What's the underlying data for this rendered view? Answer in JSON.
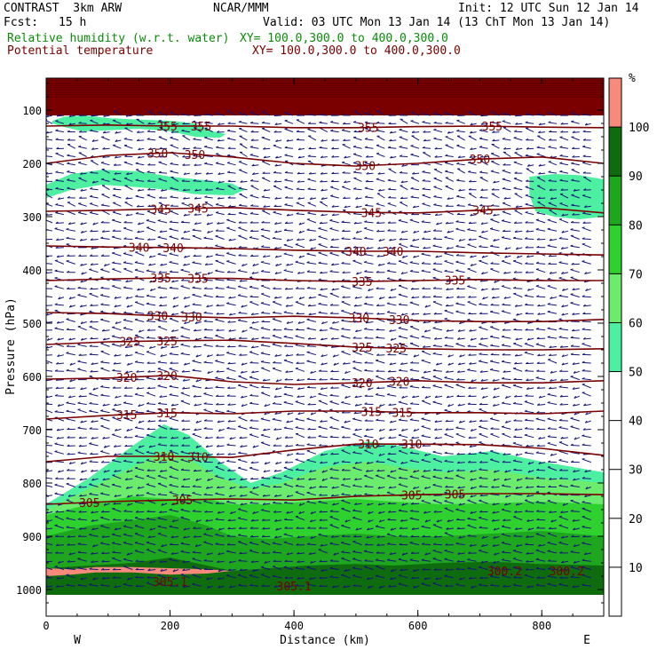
{
  "header": {
    "model": "CONTRAST  3km ARW",
    "center": "NCAR/MMM",
    "init": "Init: 12 UTC Sun 12 Jan 14",
    "fcst_label": "Fcst:",
    "fcst_value": "15 h",
    "valid": "Valid: 03 UTC Mon 13 Jan 14 (13 ChT Mon 13 Jan 14)",
    "field1_name": "Relative humidity (w.r.t. water)",
    "field1_xy": "XY= 100.0,300.0 to 400.0,300.0",
    "field2_name": "Potential temperature",
    "field2_xy": "XY= 100.0,300.0 to 400.0,300.0"
  },
  "colors": {
    "theta": "#7a0000",
    "arrows": "#14147a",
    "rh_bins": [
      "#ffffff",
      "#ffffff",
      "#ffffff",
      "#ffffff",
      "#ffffff",
      "#4df0a0",
      "#6cec6c",
      "#2fd12f",
      "#1fa61f",
      "#0e6b0e",
      "#f78a7a"
    ]
  },
  "chart_data": {
    "type": "heatmap",
    "xlabel": "Distance (km)",
    "ylabel": "Pressure (hPa)",
    "x_ticks": [
      "0",
      "200",
      "400",
      "600",
      "800"
    ],
    "x_tick_values": [
      0,
      200,
      400,
      600,
      800
    ],
    "y_ticks": [
      "100",
      "200",
      "300",
      "400",
      "500",
      "600",
      "700",
      "800",
      "900",
      "1000"
    ],
    "y_tick_values": [
      100,
      200,
      300,
      400,
      500,
      600,
      700,
      800,
      900,
      1000
    ],
    "xlim": [
      0,
      900
    ],
    "ylim": [
      1050,
      40
    ],
    "west_label": "W",
    "east_label": "E",
    "colorbar": {
      "unit": "%",
      "ticks": [
        "10",
        "20",
        "30",
        "40",
        "50",
        "60",
        "70",
        "80",
        "90",
        "100"
      ],
      "tick_values": [
        10,
        20,
        30,
        40,
        50,
        60,
        70,
        80,
        90,
        100
      ],
      "bin_edges": [
        0,
        10,
        20,
        30,
        40,
        50,
        60,
        70,
        80,
        90,
        100,
        110
      ]
    },
    "theta_contours": [
      {
        "level": 355,
        "labels": [
          "355",
          "355",
          "355",
          "355"
        ],
        "label_x": [
          195,
          250,
          520,
          720
        ],
        "x": [
          0,
          100,
          200,
          300,
          400,
          500,
          600,
          700,
          800,
          900
        ],
        "p": [
          130,
          128,
          130,
          130,
          133,
          133,
          131,
          130,
          132,
          133
        ]
      },
      {
        "level": 350,
        "labels": [
          "350",
          "350",
          "350",
          "350"
        ],
        "label_x": [
          180,
          240,
          515,
          700
        ],
        "x": [
          0,
          100,
          200,
          300,
          400,
          500,
          600,
          700,
          800,
          900
        ],
        "p": [
          200,
          185,
          180,
          188,
          200,
          205,
          200,
          192,
          188,
          200
        ]
      },
      {
        "level": 345,
        "labels": [
          "345",
          "345",
          "345",
          "345"
        ],
        "label_x": [
          185,
          245,
          525,
          705
        ],
        "x": [
          0,
          100,
          200,
          300,
          400,
          500,
          600,
          700,
          800,
          900
        ],
        "p": [
          290,
          288,
          285,
          283,
          288,
          292,
          293,
          288,
          283,
          293
        ]
      },
      {
        "level": 340,
        "labels": [
          "340",
          "340",
          "340",
          "340"
        ],
        "label_x": [
          150,
          205,
          500,
          560
        ],
        "x": [
          0,
          100,
          200,
          300,
          400,
          500,
          600,
          700,
          800,
          900
        ],
        "p": [
          355,
          357,
          358,
          360,
          363,
          365,
          365,
          368,
          370,
          372
        ]
      },
      {
        "level": 335,
        "labels": [
          "335",
          "335",
          "335",
          "335"
        ],
        "label_x": [
          185,
          245,
          510,
          660
        ],
        "x": [
          0,
          100,
          200,
          300,
          400,
          500,
          600,
          700,
          800,
          900
        ],
        "p": [
          420,
          417,
          415,
          416,
          420,
          422,
          420,
          418,
          420,
          420
        ]
      },
      {
        "level": 330,
        "labels": [
          "330",
          "330",
          "330",
          "330"
        ],
        "label_x": [
          180,
          235,
          505,
          570
        ],
        "x": [
          0,
          100,
          200,
          300,
          400,
          500,
          600,
          700,
          800,
          900
        ],
        "p": [
          480,
          482,
          487,
          490,
          487,
          490,
          495,
          497,
          497,
          493
        ]
      },
      {
        "level": 325,
        "labels": [
          "325",
          "325",
          "325",
          "325"
        ],
        "label_x": [
          135,
          195,
          510,
          565
        ],
        "x": [
          0,
          100,
          200,
          300,
          400,
          500,
          600,
          700,
          800,
          900
        ],
        "p": [
          540,
          535,
          533,
          532,
          538,
          545,
          548,
          550,
          550,
          548
        ]
      },
      {
        "level": 320,
        "labels": [
          "320",
          "320",
          "320",
          "320"
        ],
        "label_x": [
          130,
          195,
          510,
          570
        ],
        "x": [
          0,
          100,
          200,
          300,
          400,
          500,
          600,
          700,
          800,
          900
        ],
        "p": [
          605,
          603,
          598,
          610,
          615,
          612,
          608,
          612,
          612,
          608
        ]
      },
      {
        "level": 315,
        "labels": [
          "315",
          "315",
          "315",
          "315"
        ],
        "label_x": [
          130,
          195,
          525,
          575
        ],
        "x": [
          0,
          100,
          200,
          300,
          400,
          500,
          600,
          700,
          800,
          900
        ],
        "p": [
          680,
          673,
          668,
          670,
          665,
          665,
          668,
          668,
          670,
          665
        ]
      },
      {
        "level": 310,
        "labels": [
          "310",
          "310",
          "310",
          "310"
        ],
        "label_x": [
          190,
          245,
          520,
          590
        ],
        "x": [
          0,
          100,
          200,
          300,
          400,
          500,
          600,
          700,
          800,
          900
        ],
        "p": [
          760,
          750,
          750,
          752,
          738,
          727,
          727,
          728,
          735,
          748
        ]
      },
      {
        "level": 305,
        "labels": [
          "305",
          "305",
          "305",
          "305"
        ],
        "label_x": [
          70,
          220,
          590,
          660
        ],
        "x": [
          0,
          100,
          200,
          300,
          400,
          500,
          600,
          700,
          800,
          900
        ],
        "p": [
          840,
          835,
          832,
          830,
          832,
          825,
          822,
          820,
          820,
          822
        ]
      }
    ],
    "theta_low_labels": [
      "305.1",
      "305.1",
      "300.2",
      "300.2"
    ],
    "theta_low_label_x": [
      200,
      400,
      740,
      840
    ],
    "theta_low_label_p": [
      985,
      993,
      965,
      965
    ],
    "rh_layers": [
      {
        "bin": 5,
        "x": [
          0,
          70,
          140,
          190,
          230,
          280,
          330,
          380,
          450,
          520,
          570,
          640,
          720,
          800,
          900
        ],
        "p_top": [
          840,
          790,
          730,
          690,
          710,
          760,
          800,
          780,
          740,
          722,
          730,
          750,
          740,
          760,
          780
        ],
        "p_bot": [
          1010,
          1010,
          1010,
          1010,
          1010,
          1010,
          1010,
          1010,
          1010,
          1010,
          1010,
          1010,
          1010,
          1010,
          1010
        ]
      },
      {
        "bin": 6,
        "x": [
          0,
          70,
          140,
          190,
          230,
          280,
          330,
          380,
          450,
          520,
          570,
          640,
          720,
          800,
          900
        ],
        "p_top": [
          850,
          810,
          770,
          740,
          755,
          790,
          810,
          800,
          770,
          760,
          770,
          780,
          775,
          790,
          800
        ],
        "p_bot": [
          1010,
          1010,
          1010,
          1010,
          1010,
          1010,
          1010,
          1010,
          1010,
          1010,
          1010,
          1010,
          1010,
          1010,
          1010
        ]
      },
      {
        "bin": 7,
        "x": [
          0,
          70,
          140,
          200,
          260,
          300,
          360,
          420,
          500,
          560,
          640,
          720,
          800,
          900
        ],
        "p_top": [
          860,
          840,
          825,
          830,
          830,
          840,
          840,
          835,
          830,
          835,
          840,
          838,
          835,
          840
        ],
        "p_bot": [
          1010,
          1010,
          1010,
          1010,
          1010,
          1010,
          1010,
          1010,
          1010,
          1010,
          1010,
          1010,
          1010,
          1010
        ]
      },
      {
        "bin": 8,
        "x": [
          0,
          70,
          140,
          200,
          260,
          300,
          360,
          420,
          500,
          560,
          640,
          720,
          800,
          900
        ],
        "p_top": [
          900,
          880,
          870,
          860,
          880,
          900,
          905,
          900,
          895,
          900,
          900,
          895,
          890,
          900
        ],
        "p_bot": [
          1010,
          1010,
          1010,
          1010,
          1010,
          1010,
          1010,
          1010,
          1010,
          1010,
          1010,
          1010,
          1010,
          1010
        ]
      },
      {
        "bin": 9,
        "x": [
          0,
          70,
          140,
          200,
          260,
          300,
          360,
          420,
          500,
          560,
          640,
          720,
          800,
          900
        ],
        "p_top": [
          960,
          955,
          950,
          940,
          955,
          965,
          960,
          955,
          952,
          955,
          950,
          948,
          952,
          955
        ],
        "p_bot": [
          1010,
          1010,
          1010,
          1010,
          1010,
          1010,
          1010,
          1010,
          1010,
          1010,
          1010,
          1010,
          1010,
          1010
        ]
      }
    ],
    "rh_patches": [
      {
        "bin": 5,
        "x": [
          10,
          30,
          60,
          100,
          150,
          200,
          240,
          270,
          290,
          280,
          240,
          200,
          150,
          100,
          60,
          30,
          10
        ],
        "p": [
          120,
          112,
          110,
          115,
          118,
          120,
          125,
          140,
          145,
          152,
          150,
          140,
          135,
          138,
          140,
          132,
          125
        ]
      },
      {
        "bin": 5,
        "x": [
          0,
          40,
          90,
          150,
          200,
          260,
          300,
          320,
          300,
          240,
          200,
          150,
          90,
          40,
          0
        ],
        "p": [
          240,
          220,
          212,
          215,
          225,
          232,
          238,
          250,
          260,
          258,
          250,
          245,
          240,
          250,
          265
        ]
      },
      {
        "bin": 5,
        "x": [
          780,
          820,
          860,
          900,
          900,
          860,
          820,
          790,
          780
        ],
        "p": [
          225,
          220,
          222,
          230,
          300,
          305,
          300,
          290,
          260
        ]
      },
      {
        "bin": 10,
        "x": [
          0,
          40,
          80,
          140,
          200,
          260,
          300,
          260,
          200,
          140,
          80,
          40,
          0
        ],
        "p": [
          960,
          962,
          958,
          958,
          960,
          962,
          965,
          970,
          972,
          968,
          968,
          972,
          975
        ]
      }
    ],
    "top_band": {
      "p_top": 40,
      "p_bot": 110
    },
    "wind_field": {
      "x_start": 10,
      "x_step": 18.5,
      "p_start": 110,
      "p_step": 15.5,
      "rows": 58,
      "cols": 49
    }
  }
}
